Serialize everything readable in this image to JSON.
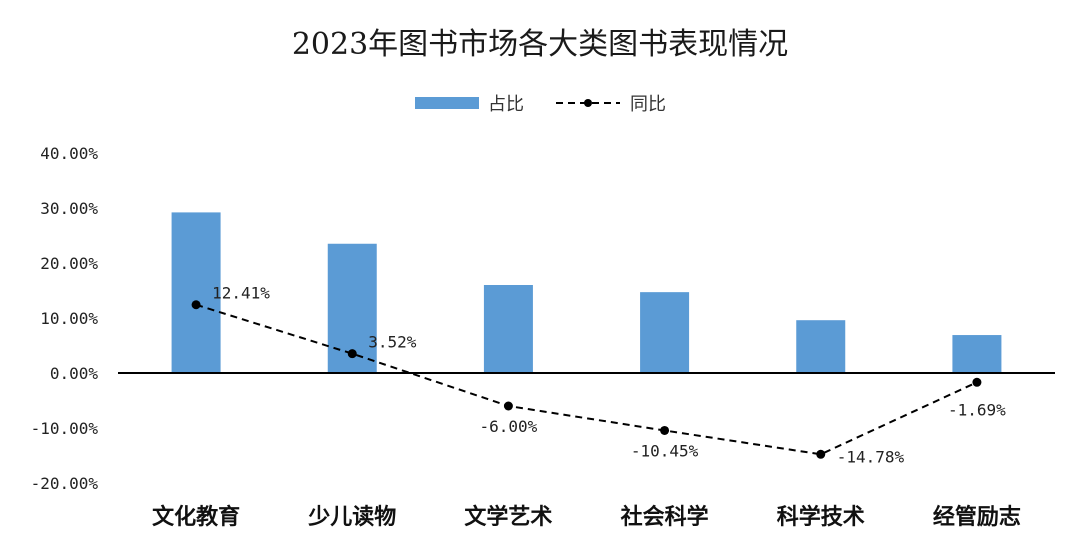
{
  "chart_data": {
    "type": "bar",
    "title": "2023年图书市场各大类图书表现情况",
    "categories": [
      "文化教育",
      "少儿读物",
      "文学艺术",
      "社会科学",
      "科学技术",
      "经管励志"
    ],
    "series": [
      {
        "name": "占比",
        "type": "bar",
        "color": "#5b9bd5",
        "values": [
          29.2,
          23.5,
          16.0,
          14.7,
          9.6,
          6.9
        ]
      },
      {
        "name": "同比",
        "type": "line",
        "style": "dashed",
        "color": "#000000",
        "values": [
          12.41,
          3.52,
          -6.0,
          -10.45,
          -14.78,
          -1.69
        ],
        "labels": [
          "12.41%",
          "3.52%",
          "-6.00%",
          "-10.45%",
          "-14.78%",
          "-1.69%"
        ]
      }
    ],
    "ylim": [
      -20,
      40
    ],
    "yticks": [
      40,
      30,
      20,
      10,
      0,
      -10,
      -20
    ],
    "ytick_labels": [
      "40.00%",
      "30.00%",
      "20.00%",
      "10.00%",
      "0.00%",
      "-10.00%",
      "-20.00%"
    ],
    "legend_position": "top-center",
    "grid": false,
    "xlabel": "",
    "ylabel": ""
  }
}
